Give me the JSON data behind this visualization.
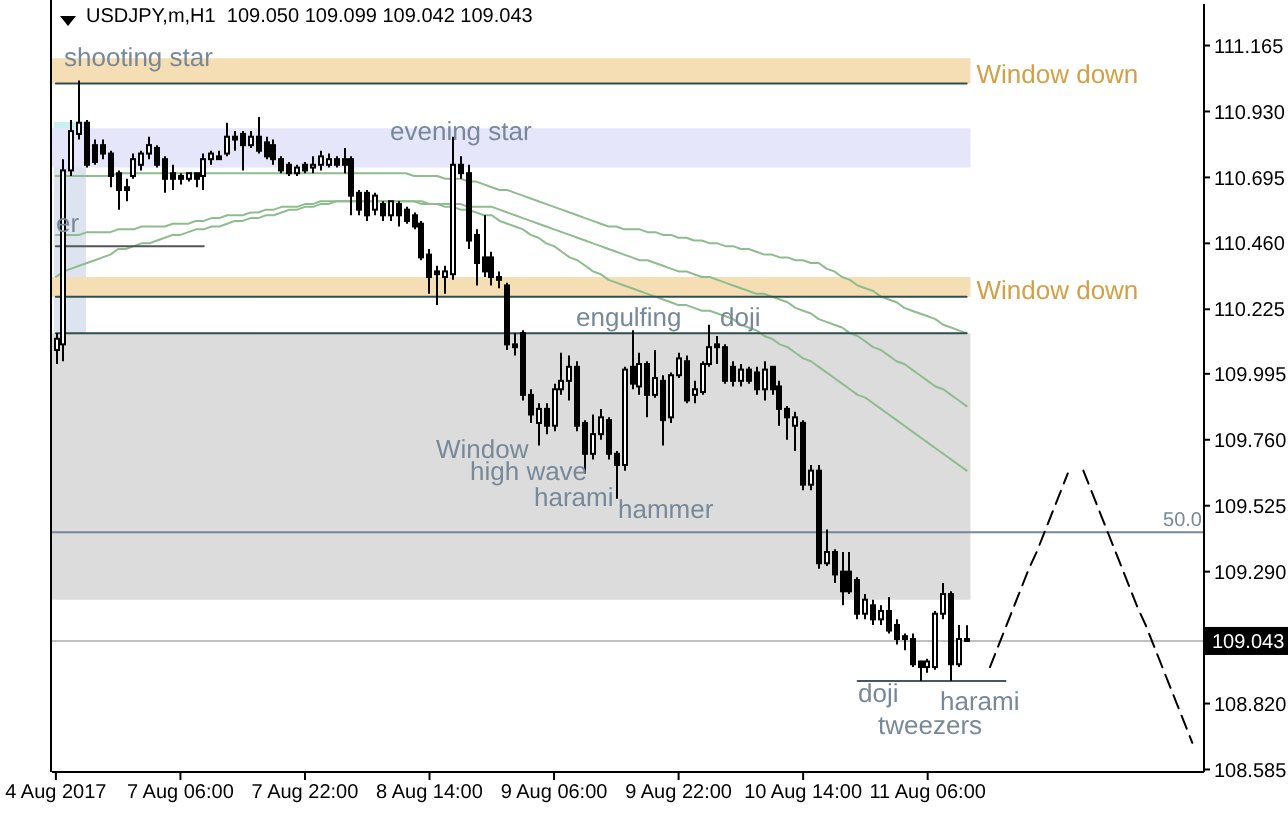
{
  "chart_data": {
    "type": "candlestick",
    "title": "USDJPY,m,H1  109.050 109.099 109.042 109.043",
    "color": "#000000",
    "categories": [
      "4 Aug 2017",
      null,
      null,
      null,
      null,
      null,
      null,
      null,
      null,
      null,
      null,
      null,
      null,
      null,
      null,
      null,
      "7 Aug 06:00",
      null,
      null,
      null,
      null,
      null,
      null,
      null,
      null,
      null,
      null,
      null,
      null,
      null,
      null,
      null,
      "7 Aug 22:00",
      null,
      null,
      null,
      null,
      null,
      null,
      null,
      null,
      null,
      null,
      null,
      null,
      null,
      null,
      null,
      "8 Aug 14:00",
      null,
      null,
      null,
      null,
      null,
      null,
      null,
      null,
      null,
      null,
      null,
      null,
      null,
      null,
      null,
      "9 Aug 06:00",
      null,
      null,
      null,
      null,
      null,
      null,
      null,
      null,
      null,
      null,
      null,
      null,
      null,
      null,
      null,
      "9 Aug 22:00",
      null,
      null,
      null,
      null,
      null,
      null,
      null,
      null,
      null,
      null,
      null,
      null,
      null,
      null,
      null,
      "10 Aug 14:00",
      null,
      null,
      null,
      null,
      null,
      null,
      null,
      null,
      null,
      null,
      null,
      null,
      null,
      null,
      null,
      "11 Aug 06:00",
      null,
      null,
      null,
      null,
      null,
      null,
      null,
      null,
      null,
      null,
      null,
      null,
      null,
      null,
      null,
      null,
      null,
      null,
      null,
      null,
      null,
      null,
      null,
      null,
      null,
      null,
      null,
      null,
      null,
      null,
      null,
      null,
      null,
      null,
      null
    ],
    "ohlc": [
      [
        110.08,
        110.14,
        110.03,
        110.12
      ],
      [
        110.1,
        110.76,
        110.04,
        110.72
      ],
      [
        110.72,
        110.9,
        110.7,
        110.86
      ],
      [
        110.85,
        111.04,
        110.83,
        110.89
      ],
      [
        110.89,
        110.9,
        110.73,
        110.74
      ],
      [
        110.81,
        110.83,
        110.74,
        110.75
      ],
      [
        110.81,
        110.83,
        110.76,
        110.78
      ],
      [
        110.78,
        110.79,
        110.66,
        110.7
      ],
      [
        110.71,
        110.72,
        110.58,
        110.65
      ],
      [
        110.66,
        110.69,
        110.61,
        110.65
      ],
      [
        110.7,
        110.78,
        110.69,
        110.76
      ],
      [
        110.74,
        110.79,
        110.72,
        110.78
      ],
      [
        110.78,
        110.84,
        110.76,
        110.81
      ],
      [
        110.8,
        110.81,
        110.73,
        110.74
      ],
      [
        110.76,
        110.77,
        110.64,
        110.69
      ],
      [
        110.71,
        110.74,
        110.65,
        110.69
      ],
      [
        110.7,
        110.71,
        110.67,
        110.69
      ],
      [
        110.69,
        110.71,
        110.68,
        110.71
      ],
      [
        110.71,
        110.71,
        110.66,
        110.69
      ],
      [
        110.7,
        110.78,
        110.65,
        110.76
      ],
      [
        110.76,
        110.79,
        110.74,
        110.78
      ],
      [
        110.77,
        110.79,
        110.76,
        110.76
      ],
      [
        110.78,
        110.89,
        110.77,
        110.84
      ],
      [
        110.84,
        110.86,
        110.79,
        110.83
      ],
      [
        110.85,
        110.86,
        110.72,
        110.81
      ],
      [
        110.81,
        110.86,
        110.8,
        110.84
      ],
      [
        110.84,
        110.91,
        110.78,
        110.79
      ],
      [
        110.82,
        110.84,
        110.76,
        110.77
      ],
      [
        110.81,
        110.83,
        110.74,
        110.76
      ],
      [
        110.76,
        110.77,
        110.71,
        110.72
      ],
      [
        110.74,
        110.75,
        110.7,
        110.71
      ],
      [
        110.71,
        110.74,
        110.7,
        110.73
      ],
      [
        110.74,
        110.75,
        110.71,
        110.72
      ],
      [
        110.73,
        110.77,
        110.71,
        110.74
      ],
      [
        110.74,
        110.79,
        110.72,
        110.77
      ],
      [
        110.74,
        110.78,
        110.73,
        110.76
      ],
      [
        110.76,
        110.77,
        110.73,
        110.74
      ],
      [
        110.76,
        110.8,
        110.71,
        110.74
      ],
      [
        110.76,
        110.77,
        110.56,
        110.63
      ],
      [
        110.64,
        110.65,
        110.56,
        110.58
      ],
      [
        110.64,
        110.65,
        110.54,
        110.56
      ],
      [
        110.58,
        110.64,
        110.56,
        110.63
      ],
      [
        110.6,
        110.61,
        110.54,
        110.56
      ],
      [
        110.56,
        110.61,
        110.54,
        110.61
      ],
      [
        110.6,
        110.61,
        110.52,
        110.56
      ],
      [
        110.58,
        110.59,
        110.53,
        110.54
      ],
      [
        110.56,
        110.57,
        110.51,
        110.52
      ],
      [
        110.53,
        110.54,
        110.4,
        110.41
      ],
      [
        110.42,
        110.44,
        110.28,
        110.34
      ],
      [
        110.36,
        110.38,
        110.24,
        110.35
      ],
      [
        110.34,
        110.38,
        110.28,
        110.36
      ],
      [
        110.35,
        110.84,
        110.33,
        110.74
      ],
      [
        110.74,
        110.77,
        110.69,
        110.71
      ],
      [
        110.71,
        110.74,
        110.44,
        110.47
      ],
      [
        110.49,
        110.51,
        110.31,
        110.39
      ],
      [
        110.41,
        110.56,
        110.34,
        110.36
      ],
      [
        110.41,
        110.43,
        110.31,
        110.34
      ],
      [
        110.34,
        110.36,
        110.3,
        110.33
      ],
      [
        110.31,
        110.32,
        110.08,
        110.1
      ],
      [
        110.1,
        110.14,
        110.06,
        110.09
      ],
      [
        110.14,
        110.15,
        109.9,
        109.92
      ],
      [
        109.92,
        109.94,
        109.82,
        109.85
      ],
      [
        109.82,
        109.89,
        109.74,
        109.87
      ],
      [
        109.87,
        109.89,
        109.78,
        109.81
      ],
      [
        109.81,
        109.96,
        109.79,
        109.94
      ],
      [
        109.94,
        110.07,
        109.92,
        109.97
      ],
      [
        109.97,
        110.06,
        109.9,
        110.02
      ],
      [
        110.02,
        110.04,
        109.79,
        109.81
      ],
      [
        109.82,
        109.83,
        109.64,
        109.71
      ],
      [
        109.71,
        109.85,
        109.69,
        109.78
      ],
      [
        109.78,
        109.87,
        109.76,
        109.84
      ],
      [
        109.83,
        109.84,
        109.69,
        109.71
      ],
      [
        109.71,
        109.72,
        109.55,
        109.67
      ],
      [
        109.67,
        110.02,
        109.65,
        110.01
      ],
      [
        110.02,
        110.15,
        109.94,
        109.96
      ],
      [
        109.95,
        110.07,
        109.92,
        110.03
      ],
      [
        110.03,
        110.04,
        109.84,
        109.92
      ],
      [
        109.92,
        110.08,
        109.91,
        109.98
      ],
      [
        109.97,
        109.99,
        109.74,
        109.83
      ],
      [
        109.84,
        110.0,
        109.82,
        109.99
      ],
      [
        109.99,
        110.07,
        109.98,
        110.05
      ],
      [
        110.04,
        110.06,
        109.89,
        109.9
      ],
      [
        109.92,
        109.97,
        109.89,
        109.94
      ],
      [
        109.93,
        110.04,
        109.92,
        110.03
      ],
      [
        110.03,
        110.17,
        110.02,
        110.09
      ],
      [
        110.1,
        110.13,
        110.03,
        110.09
      ],
      [
        110.09,
        110.1,
        109.96,
        109.97
      ],
      [
        110.02,
        110.04,
        109.95,
        109.97
      ],
      [
        109.97,
        110.03,
        109.95,
        110.01
      ],
      [
        110.01,
        110.02,
        109.96,
        109.97
      ],
      [
        110.0,
        110.02,
        109.92,
        109.94
      ],
      [
        109.94,
        110.04,
        109.9,
        110.01
      ],
      [
        110.02,
        110.02,
        109.92,
        109.94
      ],
      [
        109.95,
        109.97,
        109.81,
        109.87
      ],
      [
        109.87,
        109.88,
        109.76,
        109.84
      ],
      [
        109.81,
        109.86,
        109.72,
        109.84
      ],
      [
        109.82,
        109.83,
        109.58,
        109.6
      ],
      [
        109.6,
        109.67,
        109.58,
        109.65
      ],
      [
        109.65,
        109.67,
        109.3,
        109.32
      ],
      [
        109.32,
        109.44,
        109.31,
        109.36
      ],
      [
        109.36,
        109.37,
        109.25,
        109.28
      ],
      [
        109.29,
        109.36,
        109.17,
        109.22
      ],
      [
        109.29,
        109.36,
        109.21,
        109.22
      ],
      [
        109.26,
        109.27,
        109.12,
        109.14
      ],
      [
        109.14,
        109.21,
        109.12,
        109.19
      ],
      [
        109.17,
        109.19,
        109.1,
        109.12
      ],
      [
        109.12,
        109.17,
        109.1,
        109.15
      ],
      [
        109.15,
        109.2,
        109.07,
        109.08
      ],
      [
        109.1,
        109.12,
        109.03,
        109.05
      ],
      [
        109.06,
        109.07,
        109.01,
        109.05
      ],
      [
        109.05,
        109.07,
        108.95,
        108.96
      ],
      [
        108.97,
        108.97,
        108.9,
        108.95
      ],
      [
        108.95,
        108.98,
        108.93,
        108.97
      ],
      [
        108.95,
        109.15,
        108.94,
        109.14
      ],
      [
        109.14,
        109.25,
        109.12,
        109.21
      ],
      [
        109.21,
        109.22,
        108.9,
        108.96
      ],
      [
        108.96,
        109.1,
        108.95,
        109.05
      ],
      [
        109.05,
        109.099,
        109.042,
        109.043
      ],
      null,
      null,
      null,
      null,
      null,
      null,
      null,
      null,
      null,
      null,
      null,
      null,
      null,
      null,
      null,
      null,
      null,
      null,
      null,
      null,
      null,
      null,
      null,
      null,
      null,
      null,
      null,
      null,
      null,
      null
    ],
    "series": [
      {
        "type": "line",
        "color": "#8fbc8f",
        "values": [
          110.7,
          110.7,
          110.7,
          110.7,
          110.7,
          110.7,
          110.7,
          110.7,
          110.71,
          110.71,
          110.71,
          110.71,
          110.71,
          110.71,
          110.71,
          110.71,
          110.71,
          110.71,
          110.71,
          110.71,
          110.71,
          110.71,
          110.71,
          110.71,
          110.71,
          110.71,
          110.71,
          110.71,
          110.71,
          110.71,
          110.71,
          110.71,
          110.71,
          110.71,
          110.71,
          110.71,
          110.71,
          110.71,
          110.71,
          110.71,
          110.71,
          110.71,
          110.71,
          110.71,
          110.71,
          110.71,
          110.7,
          110.7,
          110.7,
          110.7,
          110.69,
          110.69,
          110.69,
          110.68,
          110.68,
          110.67,
          110.66,
          110.65,
          110.65,
          110.64,
          110.63,
          110.62,
          110.61,
          110.6,
          110.59,
          110.58,
          110.57,
          110.56,
          110.55,
          110.54,
          110.53,
          110.52,
          110.52,
          110.51,
          110.51,
          110.51,
          110.5,
          110.5,
          110.49,
          110.49,
          110.48,
          110.48,
          110.47,
          110.47,
          110.46,
          110.46,
          110.45,
          110.45,
          110.44,
          110.44,
          110.43,
          110.42,
          110.42,
          110.41,
          110.41,
          110.4,
          110.4,
          110.39,
          110.39,
          110.37,
          110.36,
          110.34,
          110.33,
          110.31,
          110.3,
          110.29,
          110.27,
          110.26,
          110.25,
          110.23,
          110.22,
          110.21,
          110.2,
          110.19,
          110.17,
          110.16,
          110.15,
          110.14,
          null,
          null,
          null,
          null,
          null,
          null,
          null,
          null,
          null,
          null,
          null,
          null,
          null,
          null,
          null,
          null,
          null,
          null,
          null,
          null,
          null,
          null,
          null,
          null,
          null,
          null,
          null,
          null,
          null,
          null
        ]
      },
      {
        "type": "line",
        "color": "#8fbc8f",
        "values": [
          110.49,
          110.49,
          110.49,
          110.49,
          110.5,
          110.5,
          110.5,
          110.5,
          110.51,
          110.51,
          110.51,
          110.52,
          110.52,
          110.52,
          110.52,
          110.53,
          110.53,
          110.53,
          110.54,
          110.54,
          110.55,
          110.55,
          110.56,
          110.56,
          110.56,
          110.57,
          110.57,
          110.58,
          110.58,
          110.59,
          110.59,
          110.59,
          110.6,
          110.6,
          110.61,
          110.61,
          110.61,
          110.61,
          110.61,
          110.61,
          110.61,
          110.61,
          110.61,
          110.61,
          110.61,
          110.61,
          110.61,
          110.61,
          110.6,
          110.6,
          110.6,
          110.6,
          110.6,
          110.59,
          110.59,
          110.59,
          110.59,
          110.58,
          110.57,
          110.56,
          110.55,
          110.54,
          110.53,
          110.52,
          110.51,
          110.5,
          110.49,
          110.48,
          110.47,
          110.46,
          110.45,
          110.44,
          110.43,
          110.42,
          110.41,
          110.4,
          110.4,
          110.39,
          110.38,
          110.37,
          110.36,
          110.36,
          110.35,
          110.34,
          110.34,
          110.33,
          110.32,
          110.31,
          110.3,
          110.29,
          110.28,
          110.28,
          110.27,
          110.26,
          110.25,
          110.23,
          110.22,
          110.21,
          110.19,
          110.18,
          110.17,
          110.16,
          110.14,
          110.13,
          110.11,
          110.09,
          110.08,
          110.06,
          110.04,
          110.03,
          110.01,
          109.99,
          109.97,
          109.95,
          109.94,
          109.92,
          109.9,
          109.88,
          null,
          null,
          null,
          null,
          null,
          null,
          null,
          null,
          null,
          null,
          null,
          null,
          null,
          null,
          null,
          null,
          null,
          null,
          null,
          null,
          null,
          null,
          null,
          null,
          null,
          null,
          null,
          null,
          null,
          null
        ]
      },
      {
        "type": "line",
        "color": "#8fbc8f",
        "values": [
          110.34,
          110.36,
          110.37,
          110.38,
          110.39,
          110.4,
          110.41,
          110.42,
          110.44,
          110.44,
          110.45,
          110.46,
          110.46,
          110.47,
          110.48,
          110.49,
          110.49,
          110.5,
          110.51,
          110.51,
          110.52,
          110.52,
          110.53,
          110.54,
          110.54,
          110.55,
          110.55,
          110.56,
          110.56,
          110.57,
          110.58,
          110.58,
          110.59,
          110.59,
          110.6,
          110.6,
          110.61,
          110.61,
          110.61,
          110.61,
          110.61,
          110.61,
          110.61,
          110.61,
          110.61,
          110.61,
          110.61,
          110.6,
          110.6,
          110.6,
          110.59,
          110.59,
          110.58,
          110.58,
          110.57,
          110.56,
          110.56,
          110.54,
          110.53,
          110.52,
          110.51,
          110.49,
          110.48,
          110.46,
          110.45,
          110.43,
          110.41,
          110.4,
          110.38,
          110.36,
          110.35,
          110.33,
          110.32,
          110.31,
          110.3,
          110.29,
          110.28,
          110.27,
          110.26,
          110.25,
          110.24,
          110.24,
          110.23,
          110.22,
          110.22,
          110.21,
          110.2,
          110.19,
          110.17,
          110.16,
          110.15,
          110.13,
          110.12,
          110.1,
          110.09,
          110.07,
          110.05,
          110.04,
          110.02,
          110.0,
          109.98,
          109.96,
          109.94,
          109.92,
          109.91,
          109.89,
          109.87,
          109.85,
          109.83,
          109.81,
          109.79,
          109.77,
          109.75,
          109.73,
          109.71,
          109.69,
          109.67,
          109.65,
          null,
          null,
          null,
          null,
          null,
          null,
          null,
          null,
          null,
          null,
          null,
          null,
          null,
          null,
          null,
          null,
          null,
          null,
          null,
          null,
          null,
          null,
          null,
          null,
          null,
          null,
          null,
          null,
          null,
          null
        ]
      },
      {
        "type": "line",
        "color": "#2f4f4f",
        "values": [
          111.03,
          111.03,
          111.03,
          111.03,
          111.03,
          111.03,
          111.03,
          111.03,
          111.03,
          111.03,
          111.03,
          111.03,
          111.03,
          111.03,
          111.03,
          111.03,
          111.03,
          111.03,
          111.03,
          111.03,
          111.03,
          111.03,
          111.03,
          111.03,
          111.03,
          111.03,
          111.03,
          111.03,
          111.03,
          111.03,
          111.03,
          111.03,
          111.03,
          111.03,
          111.03,
          111.03,
          111.03,
          111.03,
          111.03,
          111.03,
          111.03,
          111.03,
          111.03,
          111.03,
          111.03,
          111.03,
          111.03,
          111.03,
          111.03,
          111.03,
          111.03,
          111.03,
          111.03,
          111.03,
          111.03,
          111.03,
          111.03,
          111.03,
          111.03,
          111.03,
          111.03,
          111.03,
          111.03,
          111.03,
          111.03,
          111.03,
          111.03,
          111.03,
          111.03,
          111.03,
          111.03,
          111.03,
          111.03,
          111.03,
          111.03,
          111.03,
          111.03,
          111.03,
          111.03,
          111.03,
          111.03,
          111.03,
          111.03,
          111.03,
          111.03,
          111.03,
          111.03,
          111.03,
          111.03,
          111.03,
          111.03,
          111.03,
          111.03,
          111.03,
          111.03,
          111.03,
          111.03,
          111.03,
          111.03,
          111.03,
          111.03,
          111.03,
          111.03,
          111.03,
          111.03,
          111.03,
          111.03,
          111.03,
          111.03,
          111.03,
          111.03,
          111.03,
          111.03,
          111.03,
          111.03,
          111.03,
          111.03,
          111.03,
          null,
          null,
          null,
          null,
          null,
          null,
          null,
          null,
          null,
          null,
          null,
          null,
          null,
          null,
          null,
          null,
          null,
          null,
          null,
          null,
          null,
          null,
          null,
          null,
          null,
          null,
          null,
          null,
          null,
          null
        ]
      },
      {
        "type": "line",
        "color": "#2f4f4f",
        "values": [
          110.27,
          110.27,
          110.27,
          110.27,
          110.27,
          110.27,
          110.27,
          110.27,
          110.27,
          110.27,
          110.27,
          110.27,
          110.27,
          110.27,
          110.27,
          110.27,
          110.27,
          110.27,
          110.27,
          110.27,
          110.27,
          110.27,
          110.27,
          110.27,
          110.27,
          110.27,
          110.27,
          110.27,
          110.27,
          110.27,
          110.27,
          110.27,
          110.27,
          110.27,
          110.27,
          110.27,
          110.27,
          110.27,
          110.27,
          110.27,
          110.27,
          110.27,
          110.27,
          110.27,
          110.27,
          110.27,
          110.27,
          110.27,
          110.27,
          110.27,
          110.27,
          110.27,
          110.27,
          110.27,
          110.27,
          110.27,
          110.27,
          110.27,
          110.27,
          110.27,
          110.27,
          110.27,
          110.27,
          110.27,
          110.27,
          110.27,
          110.27,
          110.27,
          110.27,
          110.27,
          110.27,
          110.27,
          110.27,
          110.27,
          110.27,
          110.27,
          110.27,
          110.27,
          110.27,
          110.27,
          110.27,
          110.27,
          110.27,
          110.27,
          110.27,
          110.27,
          110.27,
          110.27,
          110.27,
          110.27,
          110.27,
          110.27,
          110.27,
          110.27,
          110.27,
          110.27,
          110.27,
          110.27,
          110.27,
          110.27,
          110.27,
          110.27,
          110.27,
          110.27,
          110.27,
          110.27,
          110.27,
          110.27,
          110.27,
          110.27,
          110.27,
          110.27,
          110.27,
          110.27,
          110.27,
          110.27,
          110.27,
          110.27,
          null,
          null,
          null,
          null,
          null,
          null,
          null,
          null,
          null,
          null,
          null,
          null,
          null,
          null,
          null,
          null,
          null,
          null,
          null,
          null,
          null,
          null,
          null,
          null,
          null,
          null,
          null,
          null,
          null,
          null
        ]
      },
      {
        "type": "line",
        "color": "#2f4f4f",
        "values": [
          110.14,
          110.14,
          110.14,
          110.14,
          110.14,
          110.14,
          110.14,
          110.14,
          110.14,
          110.14,
          110.14,
          110.14,
          110.14,
          110.14,
          110.14,
          110.14,
          110.14,
          110.14,
          110.14,
          110.14,
          110.14,
          110.14,
          110.14,
          110.14,
          110.14,
          110.14,
          110.14,
          110.14,
          110.14,
          110.14,
          110.14,
          110.14,
          110.14,
          110.14,
          110.14,
          110.14,
          110.14,
          110.14,
          110.14,
          110.14,
          110.14,
          110.14,
          110.14,
          110.14,
          110.14,
          110.14,
          110.14,
          110.14,
          110.14,
          110.14,
          110.14,
          110.14,
          110.14,
          110.14,
          110.14,
          110.14,
          110.14,
          110.14,
          110.14,
          110.14,
          110.14,
          110.14,
          110.14,
          110.14,
          110.14,
          110.14,
          110.14,
          110.14,
          110.14,
          110.14,
          110.14,
          110.14,
          110.14,
          110.14,
          110.14,
          110.14,
          110.14,
          110.14,
          110.14,
          110.14,
          110.14,
          110.14,
          110.14,
          110.14,
          110.14,
          110.14,
          110.14,
          110.14,
          110.14,
          110.14,
          110.14,
          110.14,
          110.14,
          110.14,
          110.14,
          110.14,
          110.14,
          110.14,
          110.14,
          110.14,
          110.14,
          110.14,
          110.14,
          110.14,
          110.14,
          110.14,
          110.14,
          110.14,
          110.14,
          110.14,
          110.14,
          110.14,
          110.14,
          110.14,
          110.14,
          110.14,
          110.14,
          110.14,
          null,
          null,
          null,
          null,
          null,
          null,
          null,
          null,
          null,
          null,
          null,
          null,
          null,
          null,
          null,
          null,
          null,
          null,
          null,
          null,
          null,
          null,
          null,
          null,
          null,
          null,
          null,
          null,
          null,
          null
        ]
      },
      {
        "type": "line",
        "color": "#555555",
        "values": [
          110.45,
          110.45,
          110.45,
          110.45,
          110.45,
          110.45,
          110.45,
          110.45,
          110.45,
          110.45,
          110.45,
          110.45,
          110.45,
          110.45,
          110.45,
          110.45,
          110.45,
          110.45,
          110.45,
          110.45,
          null,
          null,
          null,
          null,
          null,
          null,
          null,
          null,
          null,
          null,
          null,
          null,
          null,
          null,
          null,
          null,
          null,
          null,
          null,
          null,
          null,
          null,
          null,
          null,
          null,
          null,
          null,
          null,
          null,
          null,
          null,
          null,
          null,
          null,
          null,
          null,
          null,
          null,
          null,
          null,
          null,
          null,
          null,
          null,
          null,
          null,
          null,
          null,
          null,
          null,
          null,
          null,
          null,
          null,
          null,
          null,
          null,
          null,
          null,
          null,
          null,
          null,
          null,
          null,
          null,
          null,
          null,
          null,
          null,
          null,
          null,
          null,
          null,
          null,
          null,
          null,
          null,
          null,
          null,
          null,
          null,
          null,
          null,
          null,
          null,
          null,
          null,
          null,
          null,
          null,
          null,
          null,
          null,
          null,
          null,
          null,
          null,
          null,
          null,
          null,
          null,
          null,
          null,
          null,
          null,
          null,
          null,
          null,
          null,
          null,
          null,
          null,
          null,
          null,
          null,
          null,
          null,
          null,
          null,
          null,
          null,
          null,
          null,
          null,
          null,
          null,
          null,
          null
        ]
      },
      {
        "type": "line",
        "color": "#4a5560",
        "values": [
          null,
          null,
          null,
          null,
          null,
          null,
          null,
          null,
          null,
          null,
          null,
          null,
          null,
          null,
          null,
          null,
          null,
          null,
          null,
          null,
          null,
          null,
          null,
          null,
          null,
          null,
          null,
          null,
          null,
          null,
          null,
          null,
          null,
          null,
          null,
          null,
          null,
          null,
          null,
          null,
          null,
          null,
          null,
          null,
          null,
          null,
          null,
          null,
          null,
          null,
          null,
          null,
          null,
          null,
          null,
          null,
          null,
          null,
          null,
          null,
          null,
          null,
          null,
          null,
          null,
          null,
          null,
          null,
          null,
          null,
          null,
          null,
          null,
          null,
          null,
          null,
          null,
          null,
          null,
          null,
          null,
          null,
          null,
          null,
          null,
          null,
          null,
          null,
          null,
          null,
          null,
          null,
          null,
          null,
          null,
          null,
          null,
          null,
          null,
          null,
          null,
          null,
          null,
          108.9,
          108.9,
          108.9,
          108.9,
          108.9,
          108.9,
          108.9,
          108.9,
          108.9,
          108.9,
          108.9,
          108.9,
          108.9,
          108.9,
          108.9,
          108.9,
          108.9,
          108.9,
          108.9,
          108.9,
          null,
          null,
          null,
          null,
          null,
          null,
          null,
          null,
          null,
          null,
          null,
          null,
          null,
          null,
          null,
          null,
          null,
          null,
          null,
          null,
          null,
          null,
          null,
          null,
          null
        ]
      },
      {
        "type": "line",
        "color": "#000000",
        "line_style": "dashed",
        "values": [
          null,
          null,
          null,
          null,
          null,
          null,
          null,
          null,
          null,
          null,
          null,
          null,
          null,
          null,
          null,
          null,
          null,
          null,
          null,
          null,
          null,
          null,
          null,
          null,
          null,
          null,
          null,
          null,
          null,
          null,
          null,
          null,
          null,
          null,
          null,
          null,
          null,
          null,
          null,
          null,
          null,
          null,
          null,
          null,
          null,
          null,
          null,
          null,
          null,
          null,
          null,
          null,
          null,
          null,
          null,
          null,
          null,
          null,
          null,
          null,
          null,
          null,
          null,
          null,
          null,
          null,
          null,
          null,
          null,
          null,
          null,
          null,
          null,
          null,
          null,
          null,
          null,
          null,
          null,
          null,
          null,
          null,
          null,
          null,
          null,
          null,
          null,
          null,
          null,
          null,
          null,
          null,
          null,
          null,
          null,
          null,
          null,
          null,
          null,
          null,
          null,
          null,
          null,
          null,
          null,
          null,
          null,
          null,
          null,
          null,
          null,
          null,
          null,
          null,
          null,
          null,
          null,
          null,
          null,
          null,
          108.95,
          109.02,
          109.09,
          109.16,
          109.23,
          109.3,
          109.36,
          109.43,
          109.5,
          109.57,
          109.64,
          null,
          null,
          null,
          null,
          null,
          null,
          null,
          null,
          null,
          null,
          null,
          null,
          null,
          null,
          null,
          null,
          null
        ]
      },
      {
        "type": "line",
        "color": "#000000",
        "line_style": "dashed",
        "values": [
          null,
          null,
          null,
          null,
          null,
          null,
          null,
          null,
          null,
          null,
          null,
          null,
          null,
          null,
          null,
          null,
          null,
          null,
          null,
          null,
          null,
          null,
          null,
          null,
          null,
          null,
          null,
          null,
          null,
          null,
          null,
          null,
          null,
          null,
          null,
          null,
          null,
          null,
          null,
          null,
          null,
          null,
          null,
          null,
          null,
          null,
          null,
          null,
          null,
          null,
          null,
          null,
          null,
          null,
          null,
          null,
          null,
          null,
          null,
          null,
          null,
          null,
          null,
          null,
          null,
          null,
          null,
          null,
          null,
          null,
          null,
          null,
          null,
          null,
          null,
          null,
          null,
          null,
          null,
          null,
          null,
          null,
          null,
          null,
          null,
          null,
          null,
          null,
          null,
          null,
          null,
          null,
          null,
          null,
          null,
          null,
          null,
          null,
          null,
          null,
          null,
          null,
          null,
          null,
          null,
          null,
          null,
          null,
          null,
          null,
          null,
          null,
          null,
          null,
          null,
          null,
          null,
          null,
          null,
          null,
          null,
          null,
          null,
          null,
          null,
          null,
          null,
          null,
          null,
          null,
          null,
          null,
          109.65,
          109.58,
          109.51,
          109.44,
          109.37,
          109.3,
          109.23,
          109.16,
          109.1,
          109.03,
          108.96,
          108.89,
          108.82,
          108.75,
          108.68,
          null
        ]
      }
    ],
    "ylim": [
      108.576,
      111.313
    ],
    "yticks": [
      111.165,
      {
        "value": 110.93,
        "label": "110.930"
      },
      110.695,
      {
        "value": 110.46,
        "label": "110.460"
      },
      110.225,
      109.995,
      {
        "value": 109.76,
        "label": "109.760"
      },
      109.525,
      {
        "value": 109.29,
        "label": "109.290"
      },
      {
        "value": 108.82,
        "label": "108.820"
      },
      108.585
    ],
    "bands": [
      {
        "axis": "y",
        "from": 111.03,
        "to": 111.12,
        "label": "Window down",
        "color": "#f5deb3"
      },
      {
        "axis": "y",
        "from": 110.73,
        "to": 110.87,
        "color": "#e6e6fa"
      },
      {
        "axis": "y",
        "from": 110.27,
        "to": 110.34,
        "label": "Window down",
        "color": "#f5deb3"
      },
      {
        "axis": "y",
        "from": 109.19,
        "to": 110.14,
        "color": "#dcdcdc"
      }
    ],
    "ref_lines": [
      {
        "axis": "y",
        "value": 109.43,
        "color": "#778899"
      },
      {
        "axis": "y",
        "value": 109.043,
        "label": "109.043",
        "color": "#c0c0c0"
      }
    ],
    "annotations": [
      "shooting star",
      "evening star",
      "engulfing",
      "doji",
      "Window",
      "high wave",
      "harami",
      "hammer",
      "doji",
      "harami",
      "tweezers",
      "er",
      {
        "text": "50.0",
        "y": 109.43
      }
    ]
  }
}
